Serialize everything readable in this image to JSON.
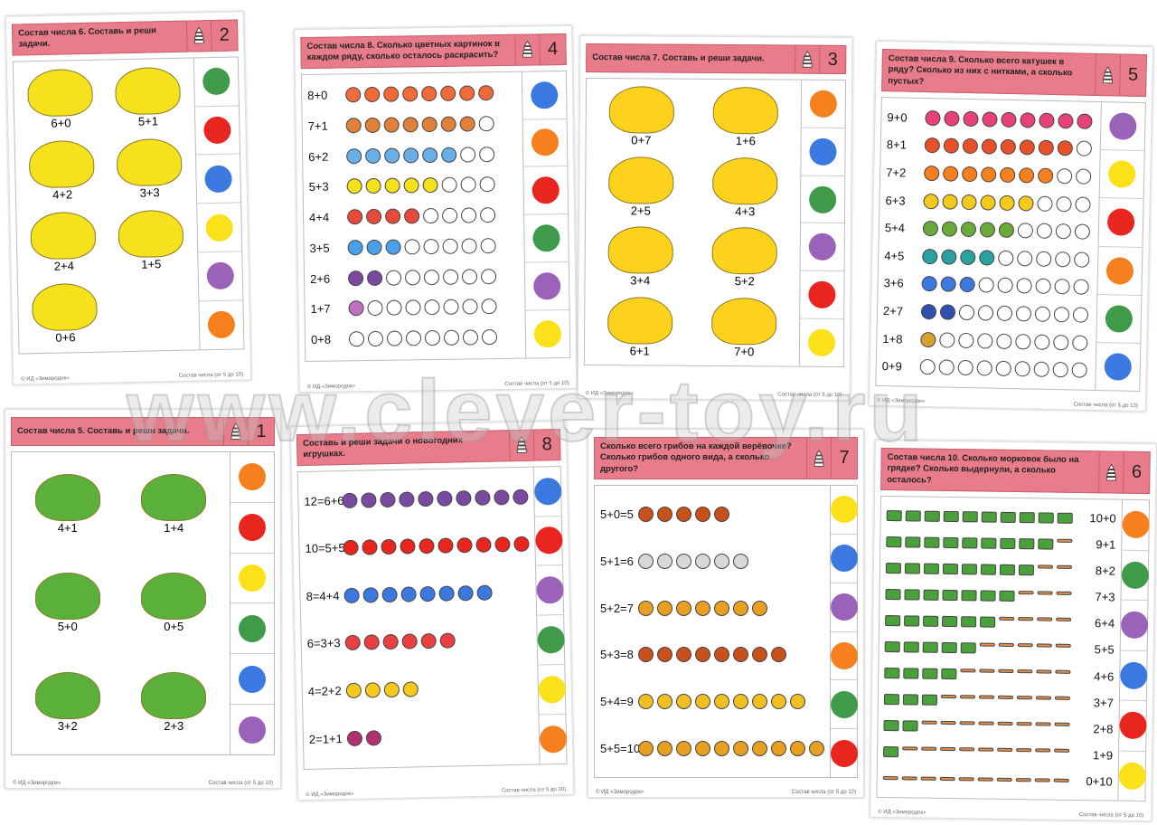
{
  "colors": {
    "green": "#3f9a4a",
    "red": "#e8251f",
    "blue": "#3b78e0",
    "yellow": "#fbe01a",
    "purple": "#9a62b8",
    "orange": "#f7801e"
  },
  "footer": {
    "publisher": "© ИД «Зимородок»",
    "series": "Состав числа (от 5 до 10)"
  },
  "watermark": "www.clever-toy.ru",
  "cards": [
    {
      "number": "2",
      "title": "Состав числа 6. Составь и реши задачи.",
      "layout": "scatter",
      "picture": "flower",
      "item_color": "#f5e21c",
      "labels": [
        "6+0",
        "5+1",
        "4+2",
        "3+3",
        "2+4",
        "1+5",
        "0+6"
      ],
      "dots": [
        "green",
        "red",
        "blue",
        "yellow",
        "purple",
        "orange"
      ]
    },
    {
      "number": "4",
      "title": "Состав числа 8. Сколько цветных картинок в каждом ряду, сколько осталось раскрасить?",
      "layout": "rows",
      "total": 8,
      "labels": [
        "8+0",
        "7+1",
        "6+2",
        "5+3",
        "4+4",
        "3+5",
        "2+6",
        "1+7",
        "0+8"
      ],
      "item_colors": [
        "#f06a3a",
        "#e0803a",
        "#6aaee8",
        "#f5e01c",
        "#e84a3a",
        "#4aa0e8",
        "#7a4aa0",
        "#c070c0",
        "#ffffff"
      ],
      "dots": [
        "blue",
        "orange",
        "red",
        "green",
        "purple",
        "yellow"
      ]
    },
    {
      "number": "3",
      "title": "Состав числа 7. Составь и реши задачи.",
      "layout": "scatter",
      "picture": "honeycomb",
      "item_color": "#fcd21c",
      "labels": [
        "0+7",
        "1+6",
        "2+5",
        "4+3",
        "3+4",
        "5+2",
        "6+1",
        "7+0"
      ],
      "dots": [
        "orange",
        "blue",
        "green",
        "purple",
        "red",
        "yellow"
      ]
    },
    {
      "number": "5",
      "title": "Состав числа 9. Сколько всего катушек в ряду? Сколько из них с нитками, а сколько пустых?",
      "layout": "rows",
      "total": 9,
      "labels": [
        "9+0",
        "8+1",
        "7+2",
        "6+3",
        "5+4",
        "4+5",
        "3+6",
        "2+7",
        "1+8",
        "0+9"
      ],
      "item_colors": [
        "#e8407a",
        "#e8502a",
        "#f7801e",
        "#f5c81c",
        "#6aaa3a",
        "#2aa0a0",
        "#3b78e0",
        "#3050b0",
        "#d9a030"
      ],
      "dots": [
        "purple",
        "yellow",
        "red",
        "orange",
        "green",
        "blue"
      ]
    },
    {
      "number": "1",
      "title": "Состав числа 5. Составь и реши задачи.",
      "layout": "scatter",
      "picture": "farm",
      "item_color": "#5ab03a",
      "labels": [
        "4+1",
        "1+4",
        "5+0",
        "0+5",
        "3+2",
        "2+3"
      ],
      "dots": [
        "orange",
        "red",
        "yellow",
        "green",
        "blue",
        "purple"
      ]
    },
    {
      "number": "8",
      "title": "Составь и реши задачи о новогодних игрушках.",
      "layout": "rows",
      "total": 12,
      "labels": [
        "12=6+6",
        "10=5+5",
        "8=4+4",
        "6=3+3",
        "4=2+2",
        "2=1+1"
      ],
      "counts": [
        12,
        10,
        8,
        6,
        4,
        2
      ],
      "item_colors": [
        "#7a4aa0",
        "#e8251f",
        "#3b78e0",
        "#e84040",
        "#f5c81c",
        "#b03070"
      ],
      "dots": [
        "blue",
        "red",
        "purple",
        "green",
        "yellow",
        "orange"
      ]
    },
    {
      "number": "7",
      "title": "Сколько всего грибов на каждой верёвочке? Сколько грибов одного вида, а сколько другого?",
      "layout": "rows",
      "labels": [
        "5+0=5",
        "5+1=6",
        "5+2=7",
        "5+3=8",
        "5+4=9",
        "5+5=10"
      ],
      "counts": [
        5,
        6,
        7,
        8,
        9,
        10
      ],
      "item_colors": [
        "#c8501a",
        "#d8d8d8",
        "#e8a020",
        "#c8501a",
        "#f0c020",
        "#e8a020"
      ],
      "dots": [
        "yellow",
        "blue",
        "purple",
        "orange",
        "green",
        "red"
      ]
    },
    {
      "number": "6",
      "title": "Состав числа 10. Сколько морковок было на грядке? Сколько выдернули, а сколько осталось?",
      "layout": "rows",
      "label_right": true,
      "total": 10,
      "labels": [
        "10+0",
        "9+1",
        "8+2",
        "7+3",
        "6+4",
        "5+5",
        "4+6",
        "3+7",
        "2+8",
        "1+9",
        "0+10"
      ],
      "item_colors": [
        "#4aa03a"
      ],
      "dots": [
        "orange",
        "green",
        "purple",
        "blue",
        "red",
        "yellow"
      ]
    }
  ]
}
